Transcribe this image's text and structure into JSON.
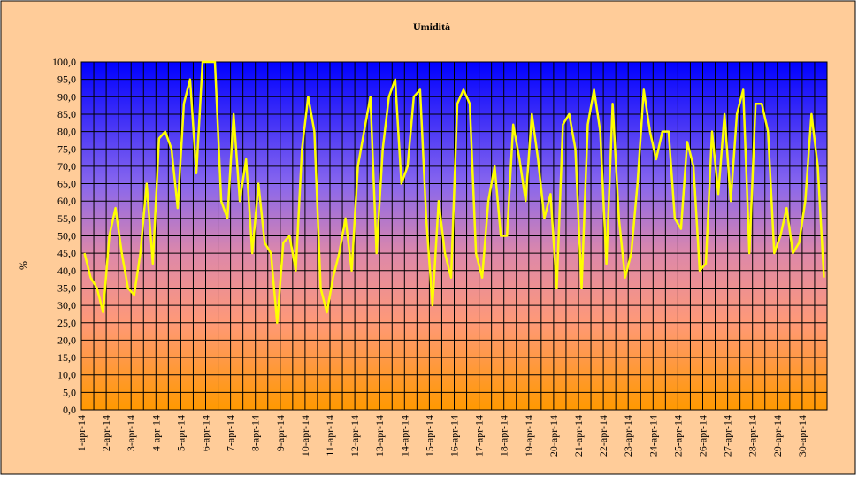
{
  "chart_data": {
    "type": "line",
    "title": "Umidità",
    "y_label": "%",
    "categories": [
      "1-apr-14",
      null,
      null,
      null,
      "2-apr-14",
      null,
      null,
      null,
      "3-apr-14",
      null,
      null,
      null,
      "4-apr-14",
      null,
      null,
      null,
      "5-apr-14",
      null,
      null,
      null,
      "6-apr-14",
      null,
      null,
      null,
      "7-apr-14",
      null,
      null,
      null,
      "8-apr-14",
      null,
      null,
      null,
      "9-apr-14",
      null,
      null,
      null,
      "10-apr-14",
      null,
      null,
      null,
      "11-apr-14",
      null,
      null,
      null,
      "12-apr-14",
      null,
      null,
      null,
      "13-apr-14",
      null,
      null,
      null,
      "14-apr-14",
      null,
      null,
      null,
      "15-apr-14",
      null,
      null,
      null,
      "16-apr-14",
      null,
      null,
      null,
      "17-apr-14",
      null,
      null,
      null,
      "18-apr-14",
      null,
      null,
      null,
      "19-apr-14",
      null,
      null,
      null,
      "20-apr-14",
      null,
      null,
      null,
      "21-apr-14",
      null,
      null,
      null,
      "22-apr-14",
      null,
      null,
      null,
      "23-apr-14",
      null,
      null,
      null,
      "24-apr-14",
      null,
      null,
      null,
      "25-apr-14",
      null,
      null,
      null,
      "26-apr-14",
      null,
      null,
      null,
      "27-apr-14",
      null,
      null,
      null,
      "28-apr-14",
      null,
      null,
      null,
      "29-apr-14",
      null,
      null,
      null,
      "30-apr-14",
      null,
      null,
      null
    ],
    "series": [
      {
        "name": "Umidità",
        "color": "#ffff00",
        "values": [
          45,
          38,
          35,
          28,
          50,
          58,
          45,
          35,
          33,
          45,
          65,
          42,
          78,
          80,
          75,
          58,
          88,
          95,
          68,
          100,
          100,
          100,
          60,
          55,
          85,
          60,
          72,
          45,
          65,
          48,
          45,
          25,
          48,
          50,
          40,
          75,
          90,
          80,
          35,
          28,
          38,
          45,
          55,
          40,
          70,
          80,
          90,
          45,
          75,
          90,
          95,
          65,
          70,
          90,
          92,
          55,
          30,
          60,
          45,
          38,
          88,
          92,
          88,
          45,
          38,
          60,
          70,
          50,
          50,
          82,
          72,
          60,
          85,
          72,
          55,
          62,
          35,
          82,
          85,
          75,
          35,
          82,
          92,
          80,
          42,
          88,
          55,
          38,
          45,
          65,
          92,
          80,
          72,
          80,
          80,
          55,
          52,
          77,
          70,
          40,
          42,
          80,
          62,
          85,
          60,
          85,
          92,
          45,
          88,
          88,
          80,
          45,
          50,
          58,
          45,
          48,
          60,
          85,
          70,
          38
        ]
      }
    ],
    "ylim": [
      0,
      100
    ],
    "yticks": [
      {
        "value": 0,
        "label": "0,0"
      },
      {
        "value": 5,
        "label": "5,0"
      },
      {
        "value": 10,
        "label": "10,0"
      },
      {
        "value": 15,
        "label": "15,0"
      },
      {
        "value": 20,
        "label": "20,0"
      },
      {
        "value": 25,
        "label": "25,0"
      },
      {
        "value": 30,
        "label": "30,0"
      },
      {
        "value": 35,
        "label": "35,0"
      },
      {
        "value": 40,
        "label": "40,0"
      },
      {
        "value": 45,
        "label": "45,0"
      },
      {
        "value": 50,
        "label": "50,0"
      },
      {
        "value": 55,
        "label": "55,0"
      },
      {
        "value": 60,
        "label": "60,0"
      },
      {
        "value": 65,
        "label": "65,0"
      },
      {
        "value": 70,
        "label": "70,0"
      },
      {
        "value": 75,
        "label": "75,0"
      },
      {
        "value": 80,
        "label": "80,0"
      },
      {
        "value": 85,
        "label": "85,0"
      },
      {
        "value": 90,
        "label": "90,0"
      },
      {
        "value": 95,
        "label": "95,0"
      },
      {
        "value": 100,
        "label": "100,0"
      }
    ],
    "grid": true
  }
}
